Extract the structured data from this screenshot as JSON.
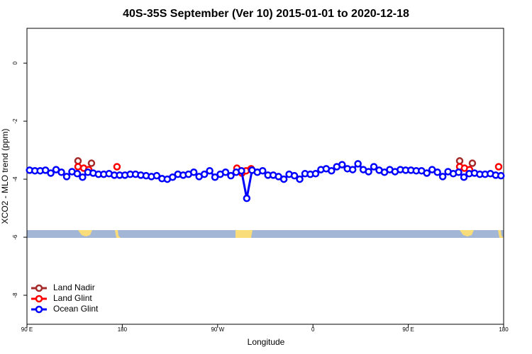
{
  "chart_data": {
    "type": "scatter",
    "title": "40S-35S September (Ver 10)   2015-01-01 to 2020-12-18",
    "x_label": "Longitude",
    "y_label": "XCO2 - MLO trend (ppm)",
    "xlim": [
      90,
      540
    ],
    "ylim": [
      -9.0,
      1.2
    ],
    "xticks": [
      {
        "value": 90,
        "label": "90 E"
      },
      {
        "value": 180,
        "label": "180"
      },
      {
        "value": 270,
        "label": "90 W"
      },
      {
        "value": 360,
        "label": "0"
      },
      {
        "value": 450,
        "label": "90 E"
      },
      {
        "value": 540,
        "label": "180"
      }
    ],
    "yticks": [
      -8,
      -6,
      -4,
      -2,
      0
    ],
    "legend": "bottom-left",
    "series": [
      {
        "name": "Land Nadir",
        "color": "#a52a2a",
        "x": [
          138.2,
          150.9,
          498.5,
          510.5
        ],
        "values": [
          -3.37,
          -3.45,
          -3.37,
          -3.45
        ]
      },
      {
        "name": "Land Glint",
        "color": "#ff0000",
        "x": [
          138.2,
          143.6,
          148.3,
          175.0,
          288.2,
          292.9,
          296.9,
          301.6,
          498.5,
          503.1,
          507.8,
          535.3
        ],
        "values": [
          -3.57,
          -3.62,
          -3.67,
          -3.57,
          -3.62,
          -3.79,
          -3.71,
          -3.64,
          -3.57,
          -3.62,
          -3.67,
          -3.57
        ]
      },
      {
        "name": "Ocean Glint",
        "color": "#0000ff",
        "x": [
          92.5,
          97.5,
          102.5,
          107.5,
          112.5,
          117.5,
          122.5,
          127.5,
          132.5,
          137.5,
          142.5,
          147.5,
          152.5,
          157.5,
          162.5,
          167.5,
          172.5,
          177.5,
          182.5,
          187.5,
          192.5,
          197.5,
          202.5,
          207.5,
          212.5,
          217.5,
          222.5,
          227.5,
          232.5,
          237.5,
          242.5,
          247.5,
          252.5,
          257.5,
          262.5,
          267.5,
          272.5,
          277.5,
          282.5,
          287.5,
          292.5,
          297.5,
          302.5,
          307.5,
          312.5,
          317.5,
          322.5,
          327.5,
          332.5,
          337.5,
          342.5,
          347.5,
          352.5,
          357.5,
          362.5,
          367.5,
          372.5,
          377.5,
          382.5,
          387.5,
          392.5,
          397.5,
          402.5,
          407.5,
          412.5,
          417.5,
          422.5,
          427.5,
          432.5,
          437.5,
          442.5,
          447.5,
          452.5,
          457.5,
          462.5,
          467.5,
          472.5,
          477.5,
          482.5,
          487.5,
          492.5,
          497.5,
          502.5,
          507.5,
          512.5,
          517.5,
          522.5,
          527.5,
          532.5,
          537.5
        ],
        "values": [
          -3.69,
          -3.71,
          -3.71,
          -3.69,
          -3.79,
          -3.67,
          -3.76,
          -3.91,
          -3.74,
          -3.81,
          -3.93,
          -3.76,
          -3.79,
          -3.83,
          -3.83,
          -3.81,
          -3.86,
          -3.86,
          -3.86,
          -3.83,
          -3.83,
          -3.86,
          -3.88,
          -3.91,
          -3.88,
          -3.98,
          -4.0,
          -3.93,
          -3.83,
          -3.86,
          -3.83,
          -3.76,
          -3.91,
          -3.83,
          -3.71,
          -3.93,
          -3.83,
          -3.76,
          -3.88,
          -3.76,
          -3.71,
          -4.66,
          -3.69,
          -3.76,
          -3.71,
          -3.86,
          -3.86,
          -3.91,
          -4.0,
          -3.83,
          -3.88,
          -4.0,
          -3.81,
          -3.83,
          -3.81,
          -3.67,
          -3.64,
          -3.71,
          -3.57,
          -3.5,
          -3.64,
          -3.67,
          -3.47,
          -3.67,
          -3.74,
          -3.57,
          -3.69,
          -3.76,
          -3.67,
          -3.74,
          -3.67,
          -3.69,
          -3.69,
          -3.71,
          -3.71,
          -3.79,
          -3.67,
          -3.76,
          -3.91,
          -3.74,
          -3.81,
          -3.76,
          -3.93,
          -3.81,
          -3.79,
          -3.83,
          -3.83,
          -3.81,
          -3.86,
          -3.88
        ]
      }
    ]
  }
}
